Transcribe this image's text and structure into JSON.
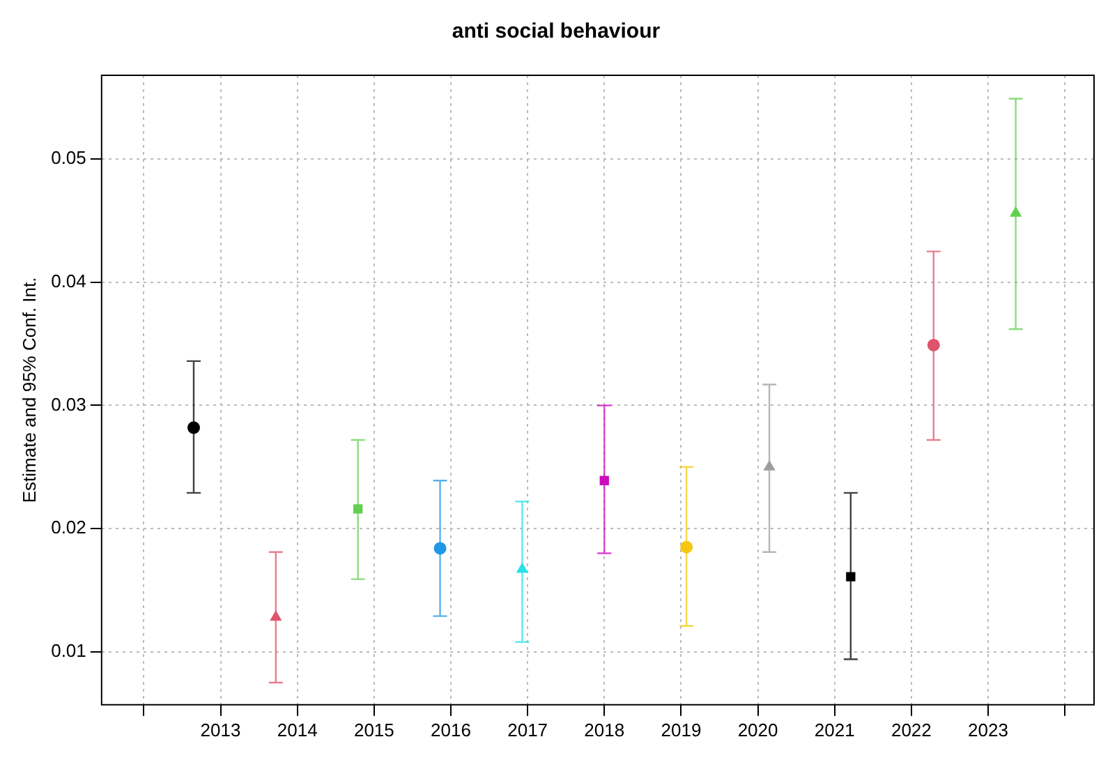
{
  "chart_data": {
    "type": "scatter",
    "title": "anti social behaviour",
    "ylabel": "Estimate and 95% Conf. Int.",
    "xlim": [
      2011.45,
      2024.38
    ],
    "xticks": [
      {
        "value": 2012,
        "label": null
      },
      2013,
      2014,
      2015,
      2016,
      2017,
      2018,
      2019,
      2020,
      2021,
      2022,
      2023,
      {
        "value": 2024,
        "label": null
      }
    ],
    "ylim": [
      0.0057,
      0.0568
    ],
    "yticks": [
      0.01,
      0.02,
      0.03,
      0.04,
      0.05
    ],
    "grid": true,
    "legend": false,
    "series": [
      {
        "color": "#000000",
        "marker": "circle",
        "x": [
          2012.65
        ],
        "values": [
          0.0282
        ],
        "errors": [
          [
            0.0229,
            0.0336
          ]
        ]
      },
      {
        "color": "#df536b",
        "marker": "triangle",
        "x": [
          2013.72
        ],
        "values": [
          0.0128
        ],
        "errors": [
          [
            0.0075,
            0.0181
          ]
        ]
      },
      {
        "color": "#61d04f",
        "marker": "square",
        "x": [
          2014.79
        ],
        "values": [
          0.0216
        ],
        "errors": [
          [
            0.0159,
            0.0272
          ]
        ]
      },
      {
        "color": "#2297e6",
        "marker": "circle",
        "x": [
          2015.86
        ],
        "values": [
          0.0184
        ],
        "errors": [
          [
            0.0129,
            0.0239
          ]
        ]
      },
      {
        "color": "#28e2e5",
        "marker": "triangle",
        "x": [
          2016.93
        ],
        "values": [
          0.0167
        ],
        "errors": [
          [
            0.0108,
            0.0222
          ]
        ]
      },
      {
        "color": "#cd0bbc",
        "marker": "square",
        "x": [
          2018.0
        ],
        "values": [
          0.0239
        ],
        "errors": [
          [
            0.018,
            0.03
          ]
        ]
      },
      {
        "color": "#f5c710",
        "marker": "circle",
        "x": [
          2019.07
        ],
        "values": [
          0.0185
        ],
        "errors": [
          [
            0.0121,
            0.025
          ]
        ]
      },
      {
        "color": "#9e9e9e",
        "marker": "triangle",
        "x": [
          2020.15
        ],
        "values": [
          0.025
        ],
        "errors": [
          [
            0.0181,
            0.0317
          ]
        ]
      },
      {
        "color": "#000000",
        "marker": "square",
        "x": [
          2021.21
        ],
        "values": [
          0.0161
        ],
        "errors": [
          [
            0.0094,
            0.0229
          ]
        ]
      },
      {
        "color": "#df536b",
        "marker": "circle",
        "x": [
          2022.29
        ],
        "values": [
          0.0349
        ],
        "errors": [
          [
            0.0272,
            0.0425
          ]
        ]
      },
      {
        "color": "#61d04f",
        "marker": "triangle",
        "x": [
          2023.36
        ],
        "values": [
          0.0456
        ],
        "errors": [
          [
            0.0362,
            0.0549
          ]
        ]
      }
    ]
  }
}
